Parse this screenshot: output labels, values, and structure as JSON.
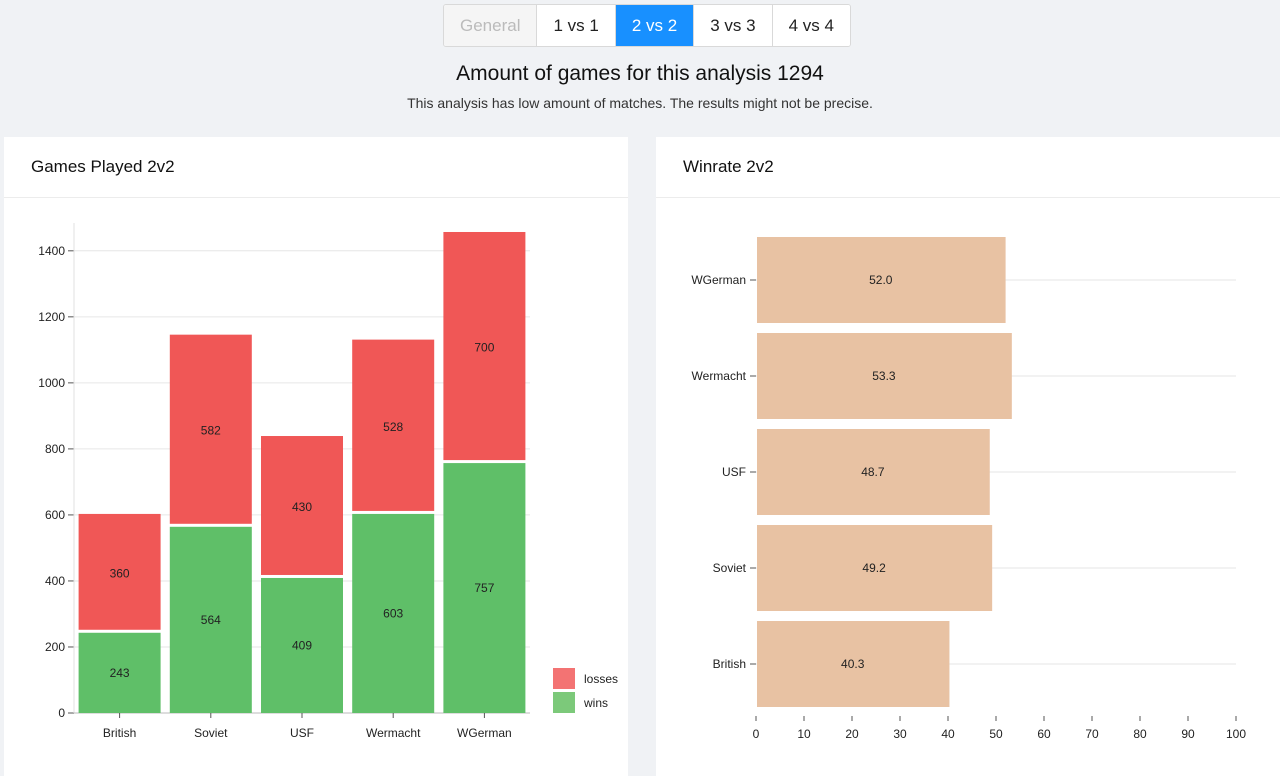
{
  "tabs": [
    {
      "label": "General",
      "state": "disabled"
    },
    {
      "label": "1 vs 1",
      "state": "normal"
    },
    {
      "label": "2 vs 2",
      "state": "active"
    },
    {
      "label": "3 vs 3",
      "state": "normal"
    },
    {
      "label": "4 vs 4",
      "state": "normal"
    }
  ],
  "header": {
    "title": "Amount of games for this analysis 1294",
    "warning": "This analysis has low amount of matches. The results might not be precise."
  },
  "colors": {
    "accent": "#1890ff",
    "losses": "#f05756",
    "wins": "#5fbf68",
    "winrate": "#e8c2a3",
    "legend_losses": "#f37373",
    "legend_wins": "#7cc97a"
  },
  "cards": {
    "games_played": {
      "title": "Games Played 2v2"
    },
    "winrate": {
      "title": "Winrate 2v2"
    }
  },
  "chart_data": [
    {
      "type": "bar",
      "stacked": true,
      "title": "Games Played 2v2",
      "categories": [
        "British",
        "Soviet",
        "USF",
        "Wermacht",
        "WGerman"
      ],
      "series": [
        {
          "name": "wins",
          "values": [
            243,
            564,
            409,
            603,
            757
          ]
        },
        {
          "name": "losses",
          "values": [
            360,
            582,
            430,
            528,
            700
          ]
        }
      ],
      "ylim": [
        0,
        1460
      ],
      "yticks": [
        0,
        200,
        400,
        600,
        800,
        1000,
        1200,
        1400
      ],
      "legend": "bottom-right",
      "legend_order": [
        "losses",
        "wins"
      ],
      "grid": true
    },
    {
      "type": "bar",
      "orientation": "horizontal",
      "title": "Winrate 2v2",
      "categories": [
        "WGerman",
        "Wermacht",
        "USF",
        "Soviet",
        "British"
      ],
      "values": [
        52.0,
        53.3,
        48.7,
        49.2,
        40.3
      ],
      "labels": [
        "52.0",
        "53.3",
        "48.7",
        "49.2",
        "40.3"
      ],
      "xlim": [
        0,
        100
      ],
      "xticks": [
        0,
        10,
        20,
        30,
        40,
        50,
        60,
        70,
        80,
        90,
        100
      ],
      "grid": true
    }
  ]
}
